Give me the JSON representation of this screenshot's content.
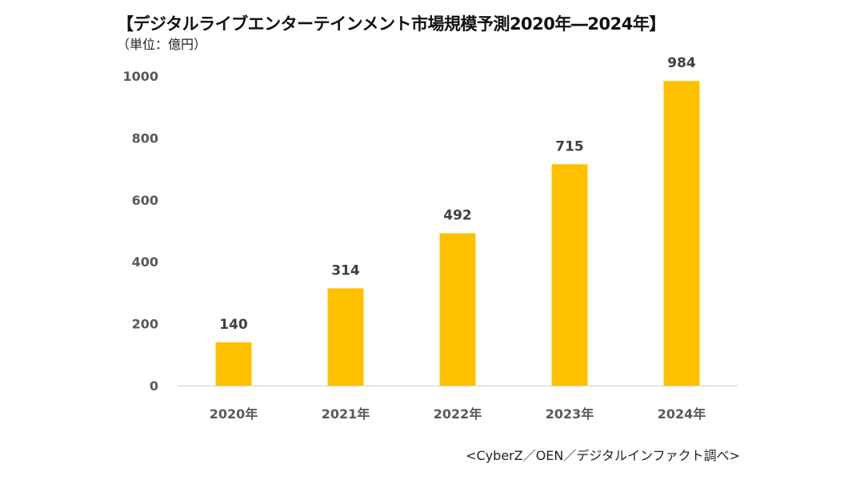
{
  "chart_data": {
    "type": "bar",
    "title": "【デジタルライブエンターテインメント市場規模予測2020年―2024年】",
    "subtitle": "（単位：億円）",
    "categories": [
      "2020年",
      "2021年",
      "2022年",
      "2023年",
      "2024年"
    ],
    "values": [
      140,
      314,
      492,
      715,
      984
    ],
    "ylim": [
      0,
      1000
    ],
    "yticks": [
      0,
      200,
      400,
      600,
      800,
      1000
    ],
    "grid": false,
    "bar_color": "#FFC000",
    "source": "<CyberZ／OEN／デジタルインファクト調べ>"
  }
}
